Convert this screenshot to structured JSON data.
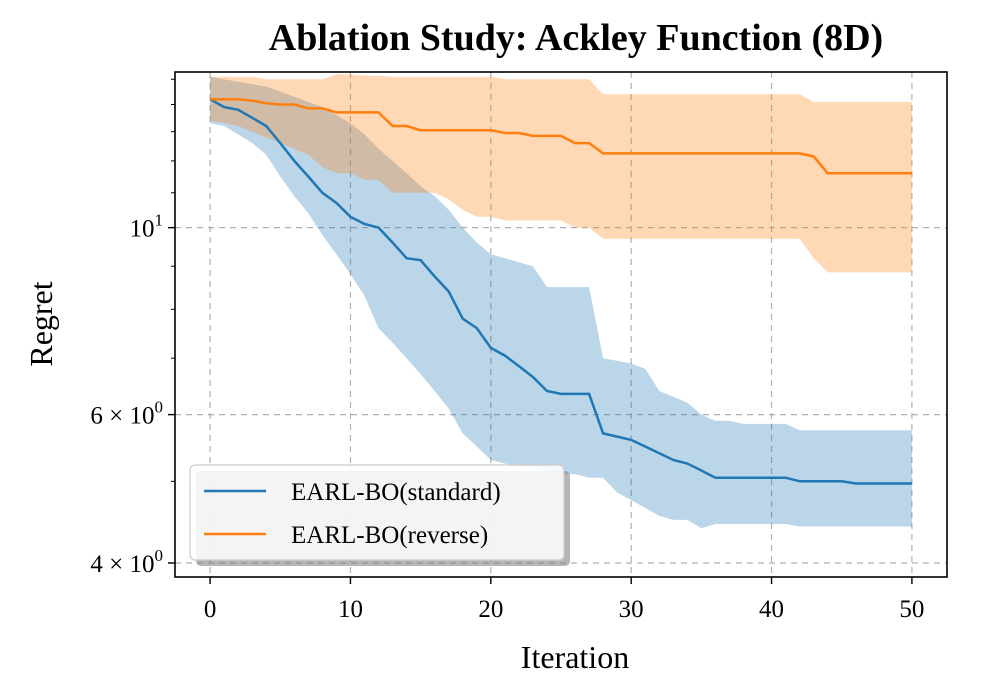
{
  "chart_data": {
    "type": "line",
    "title": "Ablation Study: Ackley Function (8D)",
    "xlabel": "Iteration",
    "ylabel": "Regret",
    "xlim": [
      -2.5,
      52.5
    ],
    "ylim": [
      3.85,
      15.3
    ],
    "yscale": "log",
    "grid": true,
    "x_ticks": [
      0,
      10,
      20,
      30,
      40,
      50
    ],
    "y_ticks": [
      {
        "value": 10,
        "base": "10",
        "exp": "1"
      },
      {
        "value": 6,
        "base": "6 × 10",
        "exp": "0"
      },
      {
        "value": 4,
        "base": "4 × 10",
        "exp": "0"
      }
    ],
    "legend_position": "lower-left",
    "series": [
      {
        "name": "EARL-BO(standard)",
        "color": "#1f77b4",
        "fill_color": "#1f77b4",
        "x": [
          0,
          1,
          2,
          3,
          4,
          5,
          6,
          7,
          8,
          9,
          10,
          11,
          12,
          13,
          14,
          15,
          16,
          17,
          18,
          19,
          20,
          21,
          22,
          23,
          24,
          25,
          26,
          27,
          28,
          29,
          30,
          31,
          32,
          33,
          34,
          35,
          36,
          37,
          38,
          39,
          40,
          41,
          42,
          43,
          44,
          45,
          46,
          47,
          48,
          49,
          50
        ],
        "mean": [
          14.2,
          13.9,
          13.8,
          13.5,
          13.2,
          12.6,
          12.0,
          11.5,
          11.0,
          10.7,
          10.3,
          10.1,
          10.0,
          9.6,
          9.2,
          9.15,
          8.75,
          8.4,
          7.8,
          7.6,
          7.2,
          7.05,
          6.85,
          6.65,
          6.4,
          6.35,
          6.35,
          6.35,
          5.7,
          5.65,
          5.6,
          5.5,
          5.4,
          5.3,
          5.25,
          5.15,
          5.05,
          5.05,
          5.05,
          5.05,
          5.05,
          5.05,
          5.0,
          5.0,
          5.0,
          5.0,
          4.97,
          4.97,
          4.97,
          4.97,
          4.97
        ],
        "lower": [
          13.3,
          13.2,
          12.9,
          12.6,
          12.2,
          11.5,
          10.9,
          10.4,
          9.8,
          9.3,
          8.8,
          8.3,
          7.6,
          7.3,
          7.0,
          6.7,
          6.4,
          6.1,
          5.7,
          5.5,
          5.3,
          5.25,
          5.2,
          5.2,
          5.15,
          5.1,
          5.1,
          5.05,
          5.05,
          4.85,
          4.75,
          4.65,
          4.55,
          4.5,
          4.5,
          4.4,
          4.45,
          4.45,
          4.45,
          4.45,
          4.45,
          4.45,
          4.42,
          4.42,
          4.42,
          4.42,
          4.42,
          4.42,
          4.42,
          4.42,
          4.42
        ],
        "upper": [
          15.1,
          15.0,
          14.9,
          14.8,
          14.7,
          14.5,
          14.3,
          14.1,
          13.9,
          13.6,
          13.3,
          12.9,
          12.4,
          12.0,
          11.6,
          11.2,
          10.9,
          10.5,
          10.0,
          9.6,
          9.3,
          9.2,
          9.1,
          9.0,
          8.5,
          8.5,
          8.5,
          8.5,
          7.0,
          6.95,
          6.9,
          6.8,
          6.4,
          6.3,
          6.2,
          6.0,
          5.9,
          5.9,
          5.85,
          5.85,
          5.85,
          5.85,
          5.75,
          5.75,
          5.75,
          5.75,
          5.75,
          5.75,
          5.75,
          5.75,
          5.75
        ]
      },
      {
        "name": "EARL-BO(reverse)",
        "color": "#ff7f0e",
        "fill_color": "#ff7f0e",
        "x": [
          0,
          1,
          2,
          3,
          4,
          5,
          6,
          7,
          8,
          9,
          10,
          11,
          12,
          13,
          14,
          15,
          16,
          17,
          18,
          19,
          20,
          21,
          22,
          23,
          24,
          25,
          26,
          27,
          28,
          29,
          30,
          31,
          32,
          33,
          34,
          35,
          36,
          37,
          38,
          39,
          40,
          41,
          42,
          43,
          44,
          45,
          46,
          47,
          48,
          49,
          50
        ],
        "mean": [
          14.2,
          14.2,
          14.2,
          14.15,
          14.05,
          14.0,
          14.0,
          13.85,
          13.85,
          13.7,
          13.7,
          13.7,
          13.7,
          13.2,
          13.2,
          13.05,
          13.05,
          13.05,
          13.05,
          13.05,
          13.05,
          12.95,
          12.95,
          12.85,
          12.85,
          12.85,
          12.6,
          12.6,
          12.25,
          12.25,
          12.25,
          12.25,
          12.25,
          12.25,
          12.25,
          12.25,
          12.25,
          12.25,
          12.25,
          12.25,
          12.25,
          12.25,
          12.25,
          12.15,
          11.6,
          11.6,
          11.6,
          11.6,
          11.6,
          11.6,
          11.6
        ],
        "lower": [
          13.4,
          13.3,
          13.2,
          13.0,
          12.8,
          12.6,
          12.4,
          12.2,
          11.8,
          11.6,
          11.6,
          11.4,
          11.4,
          11.0,
          11.0,
          11.0,
          11.0,
          10.8,
          10.5,
          10.3,
          10.3,
          10.2,
          10.2,
          10.2,
          10.2,
          10.2,
          10.0,
          10.0,
          9.7,
          9.7,
          9.7,
          9.7,
          9.7,
          9.7,
          9.7,
          9.7,
          9.7,
          9.7,
          9.7,
          9.7,
          9.7,
          9.7,
          9.7,
          9.2,
          8.85,
          8.85,
          8.85,
          8.85,
          8.85,
          8.85,
          8.85
        ],
        "upper": [
          15.1,
          15.1,
          15.1,
          15.1,
          15.0,
          15.0,
          15.0,
          15.0,
          15.0,
          15.2,
          15.2,
          15.15,
          15.15,
          15.1,
          15.1,
          15.1,
          15.1,
          15.1,
          15.1,
          15.1,
          15.1,
          15.0,
          15.0,
          15.0,
          15.0,
          15.0,
          15.0,
          15.0,
          14.4,
          14.4,
          14.4,
          14.4,
          14.4,
          14.4,
          14.4,
          14.4,
          14.4,
          14.4,
          14.4,
          14.4,
          14.4,
          14.4,
          14.4,
          14.1,
          14.1,
          14.1,
          14.1,
          14.1,
          14.1,
          14.1,
          14.1
        ]
      }
    ]
  }
}
